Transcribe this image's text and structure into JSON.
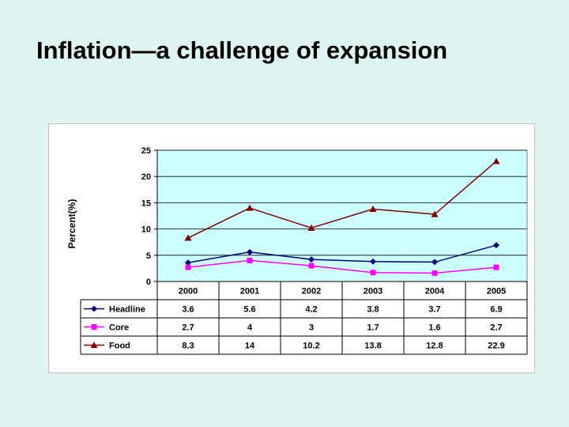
{
  "slide": {
    "title": "Inflation—a challenge of expansion"
  },
  "chart_data": {
    "type": "line",
    "ylabel": "Percent(%)",
    "xlabel": "",
    "ylim": [
      0,
      25
    ],
    "yticks": [
      0,
      5,
      10,
      15,
      20,
      25
    ],
    "categories": [
      "2000",
      "2001",
      "2002",
      "2003",
      "2004",
      "2005"
    ],
    "series": [
      {
        "name": "Headline",
        "values": [
          3.6,
          5.6,
          4.2,
          3.8,
          3.7,
          6.9
        ],
        "color": "#000080",
        "marker": "diamond"
      },
      {
        "name": "Core",
        "values": [
          2.7,
          4,
          3,
          1.7,
          1.6,
          2.7
        ],
        "color": "#ff00ff",
        "marker": "square"
      },
      {
        "name": "Food",
        "values": [
          8.3,
          14,
          10.2,
          13.8,
          12.8,
          22.9
        ],
        "color": "#800000",
        "marker": "triangle"
      }
    ],
    "plot_background": "#ccffff",
    "gridlines": true,
    "data_table": true
  }
}
